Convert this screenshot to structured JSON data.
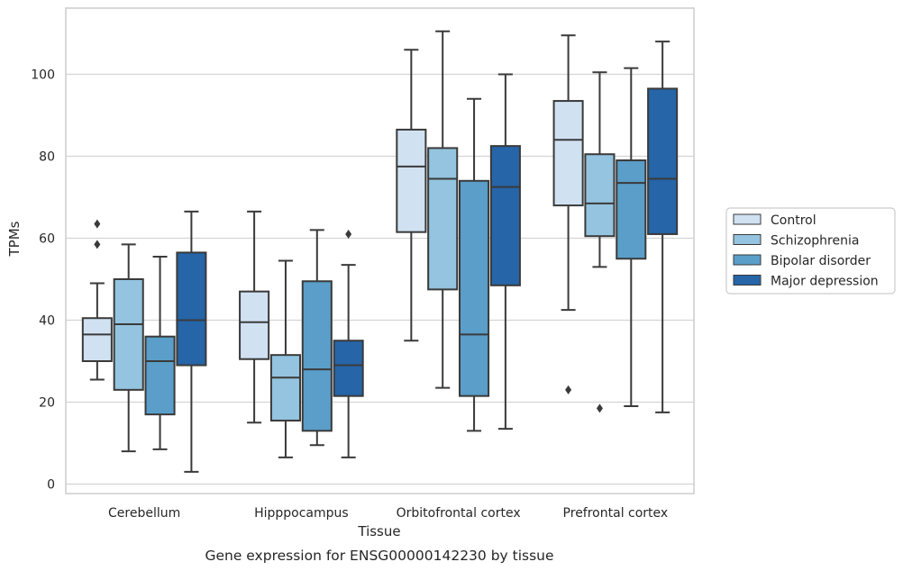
{
  "chart_data": {
    "type": "box",
    "title": "",
    "caption": "Gene expression for ENSG00000142230 by tissue",
    "xlabel": "Tissue",
    "ylabel": "TPMs",
    "ylim": [
      -2,
      116
    ],
    "yticks": [
      0,
      20,
      40,
      60,
      80,
      100
    ],
    "grid": "horizontal",
    "legend_position": "right",
    "categories": [
      "Cerebellum",
      "Hipppocampus",
      "Orbitofrontal cortex",
      "Prefrontal cortex"
    ],
    "series": [
      {
        "name": "Control",
        "color": "#d0e1f2",
        "boxes": [
          {
            "whisker_low": 25.5,
            "q1": 30,
            "median": 36.5,
            "q3": 40.5,
            "whisker_high": 49,
            "outliers": [
              58.5,
              63.5
            ]
          },
          {
            "whisker_low": 15,
            "q1": 30.5,
            "median": 39.5,
            "q3": 47,
            "whisker_high": 66.5,
            "outliers": []
          },
          {
            "whisker_low": 35,
            "q1": 61.5,
            "median": 77.5,
            "q3": 86.5,
            "whisker_high": 106,
            "outliers": []
          },
          {
            "whisker_low": 42.5,
            "q1": 68,
            "median": 84,
            "q3": 93.5,
            "whisker_high": 109.5,
            "outliers": [
              23
            ]
          }
        ]
      },
      {
        "name": "Schizophrenia",
        "color": "#94c4df",
        "boxes": [
          {
            "whisker_low": 8,
            "q1": 23,
            "median": 39,
            "q3": 50,
            "whisker_high": 58.5,
            "outliers": []
          },
          {
            "whisker_low": 6.5,
            "q1": 15.5,
            "median": 26,
            "q3": 31.5,
            "whisker_high": 54.5,
            "outliers": []
          },
          {
            "whisker_low": 23.5,
            "q1": 47.5,
            "median": 74.5,
            "q3": 82,
            "whisker_high": 110.5,
            "outliers": []
          },
          {
            "whisker_low": 53,
            "q1": 60.5,
            "median": 68.5,
            "q3": 80.5,
            "whisker_high": 100.5,
            "outliers": [
              18.5
            ]
          }
        ]
      },
      {
        "name": "Bipolar disorder",
        "color": "#5a9ec9",
        "boxes": [
          {
            "whisker_low": 8.5,
            "q1": 17,
            "median": 30,
            "q3": 36,
            "whisker_high": 55.5,
            "outliers": []
          },
          {
            "whisker_low": 9.5,
            "q1": 13,
            "median": 28,
            "q3": 49.5,
            "whisker_high": 62,
            "outliers": []
          },
          {
            "whisker_low": 13,
            "q1": 21.5,
            "median": 36.5,
            "q3": 74,
            "whisker_high": 94,
            "outliers": []
          },
          {
            "whisker_low": 19,
            "q1": 55,
            "median": 73.5,
            "q3": 79,
            "whisker_high": 101.5,
            "outliers": []
          }
        ]
      },
      {
        "name": "Major depression",
        "color": "#2565a8",
        "boxes": [
          {
            "whisker_low": 3,
            "q1": 29,
            "median": 40,
            "q3": 56.5,
            "whisker_high": 66.5,
            "outliers": []
          },
          {
            "whisker_low": 6.5,
            "q1": 21.5,
            "median": 29,
            "q3": 35,
            "whisker_high": 53.5,
            "outliers": [
              61
            ]
          },
          {
            "whisker_low": 13.5,
            "q1": 48.5,
            "median": 72.5,
            "q3": 82.5,
            "whisker_high": 100,
            "outliers": []
          },
          {
            "whisker_low": 17.5,
            "q1": 61,
            "median": 74.5,
            "q3": 96.5,
            "whisker_high": 108,
            "outliers": []
          }
        ]
      }
    ]
  }
}
